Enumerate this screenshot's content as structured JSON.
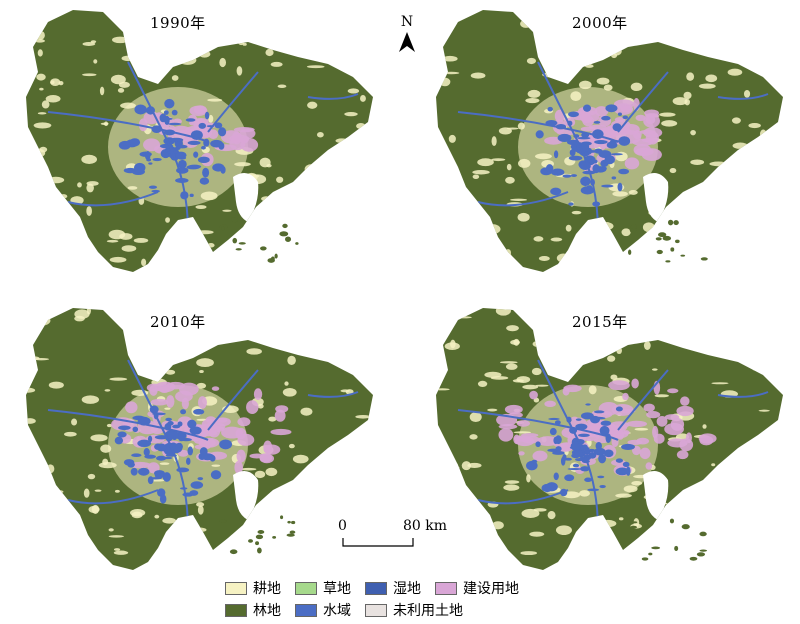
{
  "panels": [
    {
      "year": "1990年",
      "build": 0.1
    },
    {
      "year": "2000年",
      "build": 0.18
    },
    {
      "year": "2010年",
      "build": 0.34
    },
    {
      "year": "2015年",
      "build": 0.4
    }
  ],
  "north_label": "N",
  "scalebar": {
    "start": "0",
    "end": "80 km"
  },
  "legend": [
    {
      "label": "耕地",
      "color": "#f6f2c3"
    },
    {
      "label": "草地",
      "color": "#a6d98c"
    },
    {
      "label": "湿地",
      "color": "#3f5fb0"
    },
    {
      "label": "建设用地",
      "color": "#d9a6d6"
    },
    {
      "label": "林地",
      "color": "#556b2f"
    },
    {
      "label": "水域",
      "color": "#4b6dc4"
    },
    {
      "label": "未利用土地",
      "color": "#e8e2e0"
    }
  ],
  "colors": {
    "forest": "#556b2f",
    "cropland": "#f6f2c3",
    "water": "#4b6dc4",
    "built": "#d9a6d6"
  }
}
